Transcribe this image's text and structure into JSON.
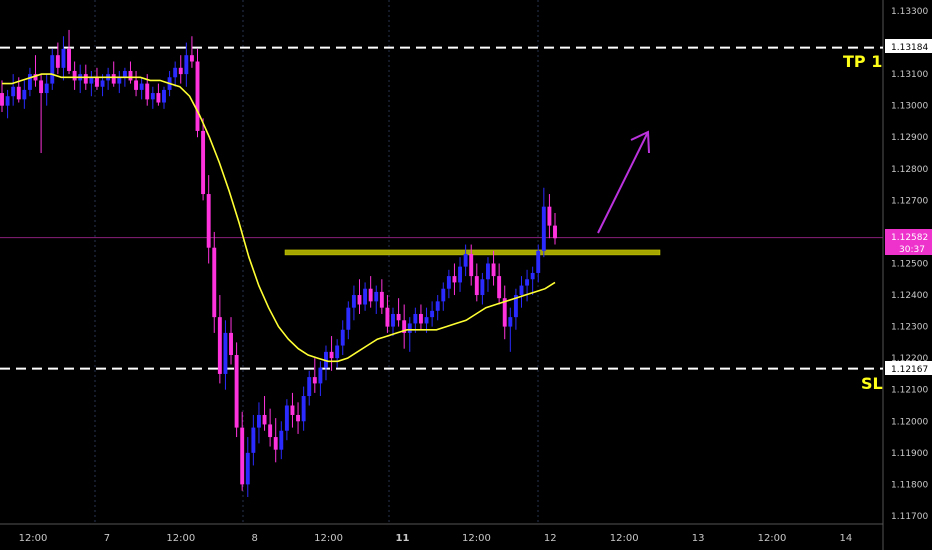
{
  "chart_data": {
    "type": "candlestick",
    "title": "",
    "y_ticks": [
      "1.13300",
      "1.13100",
      "1.13000",
      "1.12900",
      "1.12800",
      "1.12700",
      "1.12600",
      "1.12500",
      "1.12400",
      "1.12300",
      "1.12200",
      "1.12100",
      "1.12000",
      "1.11900",
      "1.11800",
      "1.11700"
    ],
    "x_ticks": [
      "12:00",
      "7",
      "12:00",
      "8",
      "12:00",
      "11",
      "12:00",
      "12",
      "12:00",
      "13",
      "12:00",
      "14"
    ],
    "levels": {
      "tp1": {
        "label": "TP 1",
        "price": 1.13184,
        "price_label": "1.13184"
      },
      "sl": {
        "label": "SL",
        "price": 1.12167,
        "price_label": "1.12167"
      },
      "current": {
        "price": 1.12582,
        "price_label": "1.12582",
        "countdown": "30:37"
      }
    },
    "resistance_zone": {
      "price": 1.12535
    },
    "colors": {
      "bull": "#2b2bff",
      "bear": "#ff33dd",
      "ma": "#ffff33",
      "zone": "#a6a600",
      "current": "#ee33cc",
      "arrow": "#bb33dd",
      "level_text": "#ffff1a"
    },
    "ohlc": [
      [
        1.1304,
        1.1308,
        1.1298,
        1.13
      ],
      [
        1.13,
        1.1305,
        1.1296,
        1.1303
      ],
      [
        1.1303,
        1.131,
        1.13,
        1.1306
      ],
      [
        1.1306,
        1.1309,
        1.1301,
        1.1302
      ],
      [
        1.1302,
        1.1308,
        1.1299,
        1.1305
      ],
      [
        1.1305,
        1.1312,
        1.1303,
        1.131
      ],
      [
        1.131,
        1.1316,
        1.1306,
        1.1308
      ],
      [
        1.1308,
        1.131,
        1.1285,
        1.1304
      ],
      [
        1.1304,
        1.131,
        1.13,
        1.1307
      ],
      [
        1.1307,
        1.1318,
        1.1305,
        1.1316
      ],
      [
        1.1316,
        1.132,
        1.131,
        1.1312
      ],
      [
        1.1312,
        1.1322,
        1.1308,
        1.1318
      ],
      [
        1.1318,
        1.1324,
        1.131,
        1.1311
      ],
      [
        1.1311,
        1.1314,
        1.1305,
        1.1308
      ],
      [
        1.1308,
        1.1313,
        1.1304,
        1.131
      ],
      [
        1.131,
        1.1313,
        1.1305,
        1.1307
      ],
      [
        1.1307,
        1.1311,
        1.1303,
        1.1309
      ],
      [
        1.1309,
        1.1312,
        1.1305,
        1.1306
      ],
      [
        1.1306,
        1.131,
        1.1303,
        1.1308
      ],
      [
        1.1308,
        1.1312,
        1.1305,
        1.131
      ],
      [
        1.131,
        1.1314,
        1.1306,
        1.1307
      ],
      [
        1.1307,
        1.1311,
        1.1304,
        1.1309
      ],
      [
        1.1309,
        1.1312,
        1.1306,
        1.1311
      ],
      [
        1.1311,
        1.1314,
        1.1307,
        1.1308
      ],
      [
        1.1308,
        1.1311,
        1.1303,
        1.1305
      ],
      [
        1.1305,
        1.1309,
        1.1302,
        1.1307
      ],
      [
        1.1307,
        1.131,
        1.13,
        1.1302
      ],
      [
        1.1302,
        1.1306,
        1.1299,
        1.1304
      ],
      [
        1.1304,
        1.1307,
        1.13,
        1.1301
      ],
      [
        1.1301,
        1.1306,
        1.1299,
        1.1305
      ],
      [
        1.1305,
        1.1311,
        1.1303,
        1.1309
      ],
      [
        1.1309,
        1.1314,
        1.1306,
        1.1312
      ],
      [
        1.1312,
        1.1316,
        1.1307,
        1.131
      ],
      [
        1.131,
        1.132,
        1.1306,
        1.1316
      ],
      [
        1.1316,
        1.1322,
        1.1312,
        1.1314
      ],
      [
        1.1314,
        1.1318,
        1.129,
        1.1292
      ],
      [
        1.1292,
        1.1296,
        1.127,
        1.1272
      ],
      [
        1.1272,
        1.1278,
        1.125,
        1.1255
      ],
      [
        1.1255,
        1.126,
        1.1228,
        1.1233
      ],
      [
        1.1233,
        1.124,
        1.1212,
        1.1215
      ],
      [
        1.1215,
        1.1232,
        1.121,
        1.1228
      ],
      [
        1.1228,
        1.1233,
        1.1218,
        1.1221
      ],
      [
        1.1221,
        1.1225,
        1.1195,
        1.1198
      ],
      [
        1.1198,
        1.1203,
        1.1178,
        1.118
      ],
      [
        1.118,
        1.1195,
        1.1176,
        1.119
      ],
      [
        1.119,
        1.1202,
        1.1186,
        1.1198
      ],
      [
        1.1198,
        1.1206,
        1.1193,
        1.1202
      ],
      [
        1.1202,
        1.1208,
        1.1197,
        1.1199
      ],
      [
        1.1199,
        1.1204,
        1.1192,
        1.1195
      ],
      [
        1.1195,
        1.1201,
        1.1187,
        1.1191
      ],
      [
        1.1191,
        1.12,
        1.1188,
        1.1197
      ],
      [
        1.1197,
        1.1207,
        1.1194,
        1.1205
      ],
      [
        1.1205,
        1.1209,
        1.1198,
        1.1202
      ],
      [
        1.1202,
        1.1206,
        1.1196,
        1.12
      ],
      [
        1.12,
        1.1211,
        1.1197,
        1.1208
      ],
      [
        1.1208,
        1.1216,
        1.1205,
        1.1214
      ],
      [
        1.1214,
        1.122,
        1.1209,
        1.1212
      ],
      [
        1.1212,
        1.1219,
        1.1208,
        1.1217
      ],
      [
        1.1217,
        1.1224,
        1.1213,
        1.1222
      ],
      [
        1.1222,
        1.1227,
        1.1216,
        1.122
      ],
      [
        1.122,
        1.1226,
        1.1217,
        1.1224
      ],
      [
        1.1224,
        1.1232,
        1.1221,
        1.1229
      ],
      [
        1.1229,
        1.1238,
        1.1226,
        1.1236
      ],
      [
        1.1236,
        1.1243,
        1.1232,
        1.124
      ],
      [
        1.124,
        1.1245,
        1.1234,
        1.1237
      ],
      [
        1.1237,
        1.1244,
        1.1235,
        1.1242
      ],
      [
        1.1242,
        1.1246,
        1.1236,
        1.1238
      ],
      [
        1.1238,
        1.1243,
        1.1234,
        1.1241
      ],
      [
        1.1241,
        1.1245,
        1.1234,
        1.1236
      ],
      [
        1.1236,
        1.124,
        1.1228,
        1.123
      ],
      [
        1.123,
        1.1236,
        1.1227,
        1.1234
      ],
      [
        1.1234,
        1.1239,
        1.123,
        1.1232
      ],
      [
        1.1232,
        1.1237,
        1.1223,
        1.1228
      ],
      [
        1.1228,
        1.1233,
        1.1222,
        1.1231
      ],
      [
        1.1231,
        1.1236,
        1.1228,
        1.1234
      ],
      [
        1.1234,
        1.1237,
        1.1229,
        1.1231
      ],
      [
        1.1231,
        1.1236,
        1.1228,
        1.1233
      ],
      [
        1.1233,
        1.1238,
        1.123,
        1.1235
      ],
      [
        1.1235,
        1.124,
        1.1232,
        1.1238
      ],
      [
        1.1238,
        1.1244,
        1.1235,
        1.1242
      ],
      [
        1.1242,
        1.1248,
        1.1239,
        1.1246
      ],
      [
        1.1246,
        1.125,
        1.124,
        1.1244
      ],
      [
        1.1244,
        1.1252,
        1.1241,
        1.1249
      ],
      [
        1.1249,
        1.1256,
        1.1246,
        1.1253
      ],
      [
        1.1253,
        1.1256,
        1.1243,
        1.1246
      ],
      [
        1.1246,
        1.125,
        1.1238,
        1.124
      ],
      [
        1.124,
        1.1247,
        1.1237,
        1.1245
      ],
      [
        1.1245,
        1.1252,
        1.1241,
        1.125
      ],
      [
        1.125,
        1.1254,
        1.1243,
        1.1246
      ],
      [
        1.1246,
        1.125,
        1.1237,
        1.1239
      ],
      [
        1.1239,
        1.1243,
        1.1226,
        1.123
      ],
      [
        1.123,
        1.1236,
        1.1222,
        1.1233
      ],
      [
        1.1233,
        1.1242,
        1.1229,
        1.124
      ],
      [
        1.124,
        1.1246,
        1.1236,
        1.1243
      ],
      [
        1.1243,
        1.1248,
        1.1238,
        1.1245
      ],
      [
        1.1245,
        1.1249,
        1.124,
        1.1247
      ],
      [
        1.1247,
        1.1256,
        1.1244,
        1.1254
      ],
      [
        1.1254,
        1.1274,
        1.1252,
        1.1268
      ],
      [
        1.1268,
        1.1272,
        1.1258,
        1.1262
      ],
      [
        1.1262,
        1.1266,
        1.1256,
        1.1258
      ]
    ],
    "ma": [
      1.1307,
      1.1307,
      1.1308,
      1.1309,
      1.131,
      1.131,
      1.1309,
      1.1309,
      1.1309,
      1.1309,
      1.1309,
      1.1309,
      1.1309,
      1.1309,
      1.1309,
      1.1308,
      1.1308,
      1.1307,
      1.1306,
      1.1303,
      1.1297,
      1.129,
      1.1282,
      1.1273,
      1.1263,
      1.1252,
      1.1243,
      1.1236,
      1.123,
      1.1226,
      1.1223,
      1.1221,
      1.122,
      1.1219,
      1.1219,
      1.122,
      1.1222,
      1.1224,
      1.1226,
      1.1227,
      1.1228,
      1.1229,
      1.1229,
      1.1229,
      1.1229,
      1.123,
      1.1231,
      1.1232,
      1.1234,
      1.1236,
      1.1237,
      1.1238,
      1.1239,
      1.124,
      1.1241,
      1.1242,
      1.1244
    ]
  }
}
